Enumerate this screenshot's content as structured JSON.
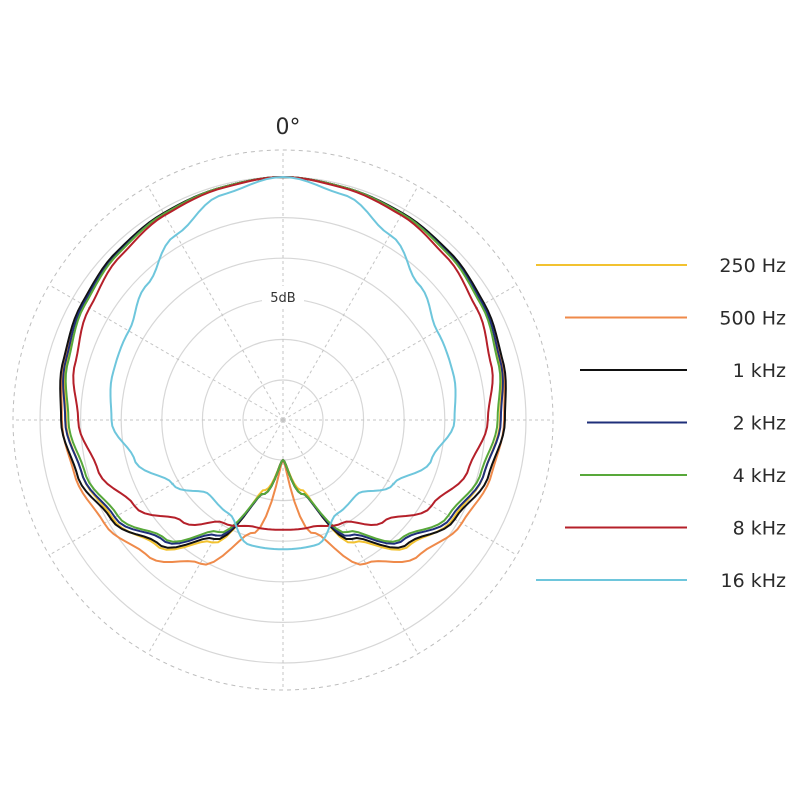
{
  "chart_data": {
    "type": "polar",
    "angle_label": "0°",
    "ring_label": "5dB",
    "rings_db": [
      0,
      -5,
      -10,
      -15,
      -20,
      -25
    ],
    "spoke_step_deg": 30,
    "grid": true,
    "legend_position": "right",
    "series": [
      {
        "name": "250 Hz",
        "color": "#f2c230",
        "points": [
          [
            0,
            0
          ],
          [
            15,
            -0.3
          ],
          [
            30,
            -0.6
          ],
          [
            45,
            -1.1
          ],
          [
            60,
            -1.7
          ],
          [
            75,
            -2.4
          ],
          [
            90,
            -3.2
          ],
          [
            105,
            -4.3
          ],
          [
            120,
            -5.7
          ],
          [
            135,
            -8.0
          ],
          [
            150,
            -12.5
          ],
          [
            165,
            -21
          ],
          [
            180,
            -25
          ]
        ]
      },
      {
        "name": "500 Hz",
        "color": "#ef8a4a",
        "points": [
          [
            0,
            0
          ],
          [
            15,
            -0.3
          ],
          [
            30,
            -0.6
          ],
          [
            45,
            -1.0
          ],
          [
            60,
            -1.5
          ],
          [
            75,
            -2.1
          ],
          [
            90,
            -2.7
          ],
          [
            105,
            -3.4
          ],
          [
            120,
            -4.5
          ],
          [
            135,
            -6.3
          ],
          [
            150,
            -9.5
          ],
          [
            165,
            -15.5
          ],
          [
            180,
            -25
          ]
        ]
      },
      {
        "name": "1 kHz",
        "color": "#111111",
        "points": [
          [
            0,
            0
          ],
          [
            15,
            -0.3
          ],
          [
            30,
            -0.5
          ],
          [
            45,
            -0.8
          ],
          [
            60,
            -1.3
          ],
          [
            75,
            -1.9
          ],
          [
            90,
            -2.6
          ],
          [
            105,
            -3.7
          ],
          [
            120,
            -5.5
          ],
          [
            135,
            -8.3
          ],
          [
            150,
            -13.0
          ],
          [
            165,
            -20.5
          ],
          [
            180,
            -25
          ]
        ]
      },
      {
        "name": "2 kHz",
        "color": "#1f2f7a",
        "points": [
          [
            0,
            0
          ],
          [
            15,
            -0.3
          ],
          [
            30,
            -0.6
          ],
          [
            45,
            -1.0
          ],
          [
            60,
            -1.5
          ],
          [
            75,
            -2.2
          ],
          [
            90,
            -3.1
          ],
          [
            105,
            -4.3
          ],
          [
            120,
            -6.0
          ],
          [
            135,
            -9.0
          ],
          [
            150,
            -13.5
          ],
          [
            165,
            -20.5
          ],
          [
            180,
            -25
          ]
        ]
      },
      {
        "name": "4 kHz",
        "color": "#58a83a",
        "points": [
          [
            0,
            0
          ],
          [
            15,
            -0.3
          ],
          [
            30,
            -0.6
          ],
          [
            45,
            -1.1
          ],
          [
            60,
            -1.7
          ],
          [
            75,
            -2.5
          ],
          [
            90,
            -3.5
          ],
          [
            105,
            -4.7
          ],
          [
            120,
            -6.4
          ],
          [
            135,
            -9.3
          ],
          [
            150,
            -14.0
          ],
          [
            165,
            -20.5
          ],
          [
            180,
            -25
          ]
        ]
      },
      {
        "name": "8 kHz",
        "color": "#b5202a",
        "points": [
          [
            0,
            0
          ],
          [
            15,
            -0.4
          ],
          [
            30,
            -0.8
          ],
          [
            45,
            -1.5
          ],
          [
            60,
            -2.4
          ],
          [
            75,
            -3.4
          ],
          [
            90,
            -4.7
          ],
          [
            105,
            -6.3
          ],
          [
            120,
            -8.8
          ],
          [
            135,
            -12.3
          ],
          [
            150,
            -15.3
          ],
          [
            165,
            -16.3
          ],
          [
            180,
            -16.4
          ]
        ]
      },
      {
        "name": "16 kHz",
        "color": "#6ec6dc",
        "points": [
          [
            0,
            0
          ],
          [
            15,
            -1.2
          ],
          [
            30,
            -3.6
          ],
          [
            45,
            -6.3
          ],
          [
            60,
            -8.0
          ],
          [
            75,
            -8.2
          ],
          [
            90,
            -8.8
          ],
          [
            105,
            -11.0
          ],
          [
            120,
            -14.2
          ],
          [
            135,
            -17.0
          ],
          [
            150,
            -16.6
          ],
          [
            165,
            -14.0
          ],
          [
            180,
            -14.0
          ]
        ]
      }
    ]
  }
}
